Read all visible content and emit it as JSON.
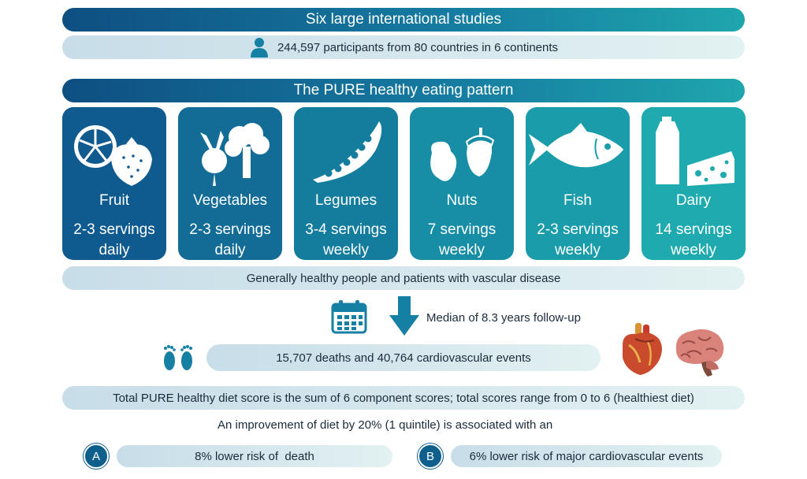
{
  "header": {
    "studies_title": "Six large international studies",
    "participants": "244,597 participants from 80 countries in 6 continents",
    "pattern_title": "The PURE healthy eating pattern"
  },
  "foods": [
    {
      "name": "Fruit",
      "line1": "2-3 servings",
      "line2": "daily",
      "color": "#0f5a8e",
      "icon": "fruit-icon"
    },
    {
      "name": "Vegetables",
      "line1": "2-3 servings",
      "line2": "daily",
      "color": "#126c96",
      "icon": "vegetables-icon"
    },
    {
      "name": "Legumes",
      "line1": "3-4 servings",
      "line2": "weekly",
      "color": "#147d9e",
      "icon": "legumes-icon"
    },
    {
      "name": "Nuts",
      "line1": "7 servings",
      "line2": "weekly",
      "color": "#178ea5",
      "icon": "nuts-icon"
    },
    {
      "name": "Fish",
      "line1": "2-3 servings",
      "line2": "weekly",
      "color": "#1a9caa",
      "icon": "fish-icon"
    },
    {
      "name": "Dairy",
      "line1": "14 servings",
      "line2": "weekly",
      "color": "#1eaaaf",
      "icon": "dairy-icon"
    }
  ],
  "population": "Generally healthy people and patients with vascular disease",
  "followup": "Median of 8.3 years follow-up",
  "events": "15,707 deaths and 40,764 cardiovascular events",
  "score": "Total PURE healthy diet score is the sum of 6 component scores; total scores range from 0 to 6 (healthiest diet)",
  "improvement": "An improvement of diet by 20% (1 quintile) is associated with an",
  "outcomes": [
    {
      "label": "A",
      "text": "8% lower risk of  death"
    },
    {
      "label": "B",
      "text": "6% lower risk of major cardiovascular events"
    }
  ],
  "colors": {
    "dark_start": "#0e4f82",
    "dark_end": "#1fa6ad",
    "light": "#d8e9ee"
  }
}
